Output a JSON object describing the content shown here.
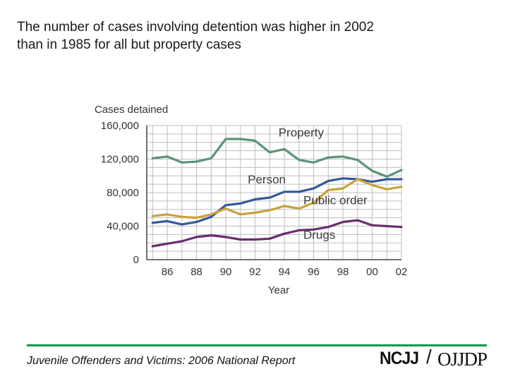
{
  "slide": {
    "title_line1": "The number of cases involving detention was higher in 2002",
    "title_line2": "than in 1985 for all but property cases",
    "footer": "Juvenile Offenders and Victims: 2006 National Report",
    "logo_left": "NCJJ",
    "logo_slash": "/",
    "logo_right": "OJJDP"
  },
  "colors": {
    "Property": "#5a9478",
    "Person": "#35579a",
    "Public order": "#c9a23a",
    "Drugs": "#6b2d6b",
    "grid": "#bdbdbd",
    "footer_rule": "#14964a"
  },
  "chart_data": {
    "type": "line",
    "title": "",
    "ylabel": "Cases detained",
    "xlabel": "Year",
    "ylim": [
      0,
      160000
    ],
    "yticks": [
      0,
      40000,
      80000,
      120000,
      160000
    ],
    "ytick_labels": [
      "0",
      "40,000",
      "80,000",
      "120,000",
      "160,000"
    ],
    "xlim": [
      1985,
      2002
    ],
    "xticks": [
      1986,
      1988,
      1990,
      1992,
      1994,
      1996,
      1998,
      2000,
      2002
    ],
    "xtick_labels": [
      "86",
      "88",
      "90",
      "92",
      "94",
      "96",
      "98",
      "00",
      "02"
    ],
    "x": [
      1985,
      1986,
      1987,
      1988,
      1989,
      1990,
      1991,
      1992,
      1993,
      1994,
      1995,
      1996,
      1997,
      1998,
      1999,
      2000,
      2001,
      2002
    ],
    "series": [
      {
        "name": "Property",
        "label": "Property",
        "label_at": [
          1993.6,
          147000
        ],
        "values": [
          121000,
          123000,
          116000,
          117000,
          121000,
          144000,
          144000,
          142000,
          128000,
          132000,
          119000,
          116000,
          122000,
          123000,
          119000,
          106000,
          99000,
          107000
        ]
      },
      {
        "name": "Person",
        "label": "Person",
        "label_at": [
          1991.5,
          91000
        ],
        "values": [
          44000,
          46000,
          42000,
          45000,
          51000,
          65000,
          67000,
          72000,
          74000,
          81000,
          81000,
          85000,
          94000,
          97000,
          96000,
          93000,
          96000,
          96000
        ]
      },
      {
        "name": "Public order",
        "label": "Public order",
        "label_at": [
          1995.3,
          66000
        ],
        "values": [
          52000,
          54000,
          51000,
          50000,
          54000,
          61000,
          54000,
          56000,
          59000,
          64000,
          61000,
          68000,
          83000,
          85000,
          96000,
          89000,
          84000,
          87000
        ]
      },
      {
        "name": "Drugs",
        "label": "Drugs",
        "label_at": [
          1995.3,
          25000
        ],
        "values": [
          16000,
          19000,
          22000,
          27000,
          29000,
          27000,
          24000,
          24000,
          25000,
          31000,
          35000,
          36000,
          39000,
          45000,
          47000,
          41000,
          40000,
          39000
        ]
      }
    ]
  }
}
